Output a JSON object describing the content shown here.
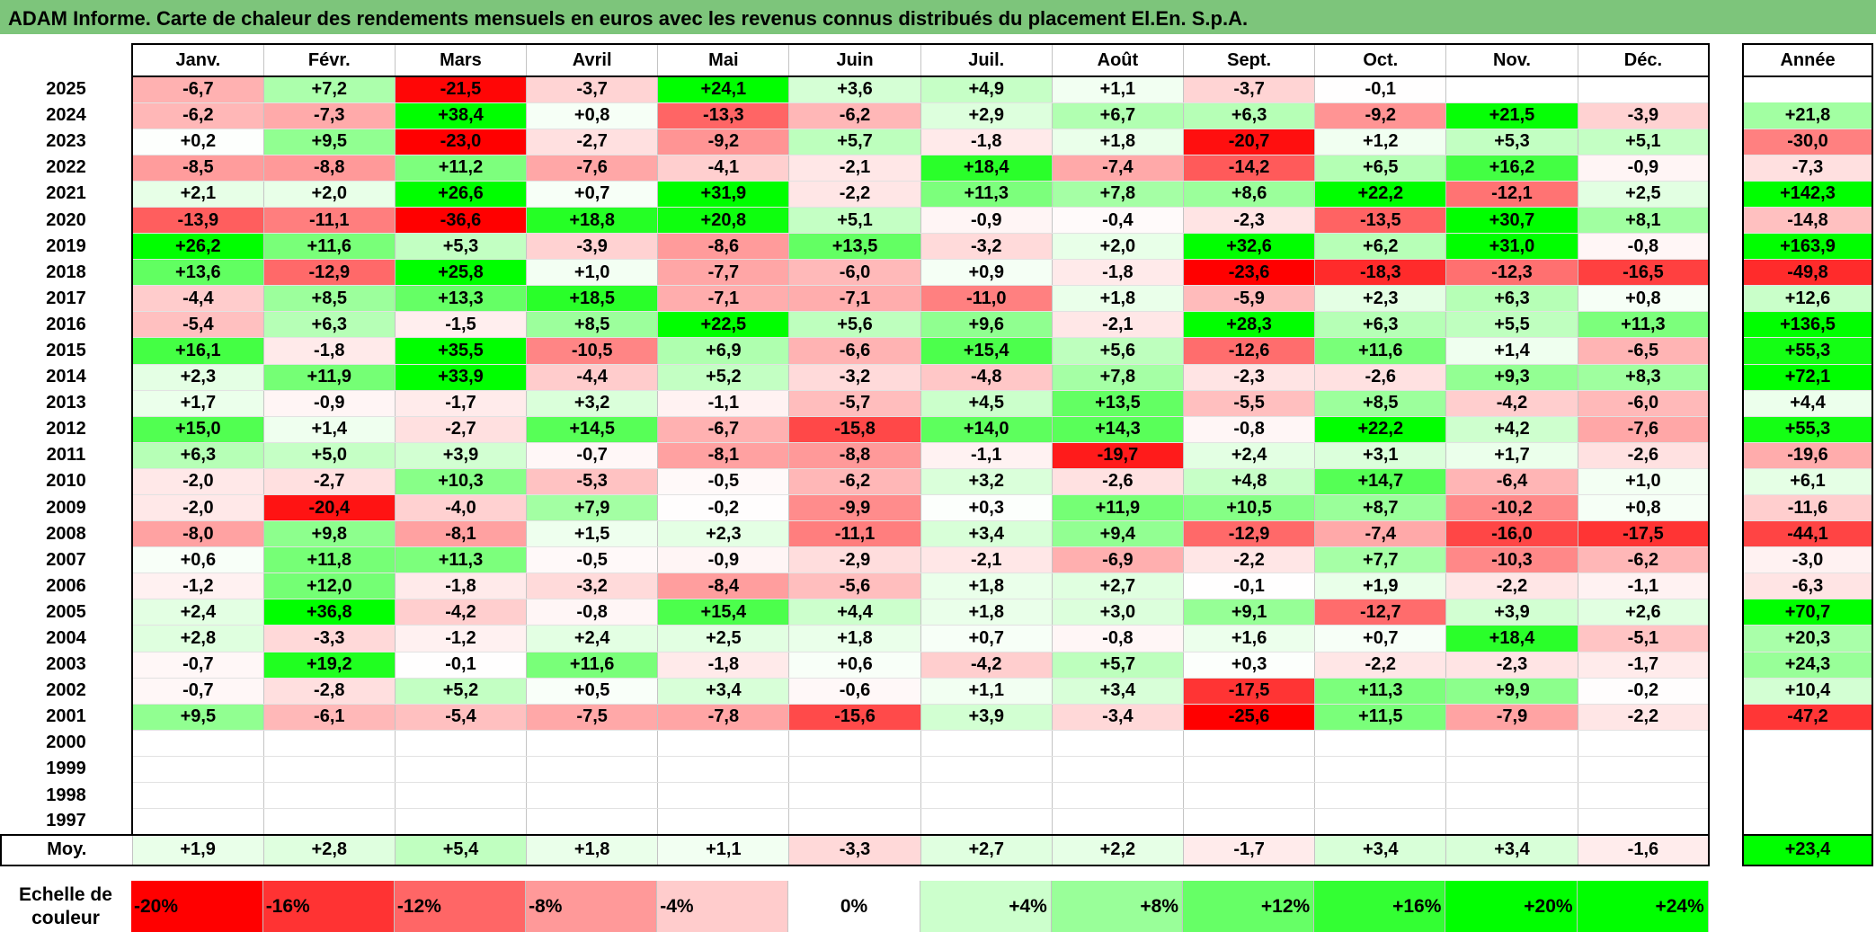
{
  "title": "ADAM Informe. Carte de chaleur des rendements mensuels en euros avec les revenus connus distribués du placement El.En. S.p.A.",
  "chart_data": {
    "type": "heatmap",
    "months": [
      "Janv.",
      "Févr.",
      "Mars",
      "Avril",
      "Mai",
      "Juin",
      "Juil.",
      "Août",
      "Sept.",
      "Oct.",
      "Nov.",
      "Déc."
    ],
    "annual_header": "Année",
    "rows": [
      {
        "year": "2025",
        "values": [
          "-6,7",
          "+7,2",
          "-21,5",
          "-3,7",
          "+24,1",
          "+3,6",
          "+4,9",
          "+1,1",
          "-3,7",
          "-0,1",
          "",
          ""
        ],
        "annual": ""
      },
      {
        "year": "2024",
        "values": [
          "-6,2",
          "-7,3",
          "+38,4",
          "+0,8",
          "-13,3",
          "-6,2",
          "+2,9",
          "+6,7",
          "+6,3",
          "-9,2",
          "+21,5",
          "-3,9"
        ],
        "annual": "+21,8"
      },
      {
        "year": "2023",
        "values": [
          "+0,2",
          "+9,5",
          "-23,0",
          "-2,7",
          "-9,2",
          "+5,7",
          "-1,8",
          "+1,8",
          "-20,7",
          "+1,2",
          "+5,3",
          "+5,1"
        ],
        "annual": "-30,0"
      },
      {
        "year": "2022",
        "values": [
          "-8,5",
          "-8,8",
          "+11,2",
          "-7,6",
          "-4,1",
          "-2,1",
          "+18,4",
          "-7,4",
          "-14,2",
          "+6,5",
          "+16,2",
          "-0,9"
        ],
        "annual": "-7,3"
      },
      {
        "year": "2021",
        "values": [
          "+2,1",
          "+2,0",
          "+26,6",
          "+0,7",
          "+31,9",
          "-2,2",
          "+11,3",
          "+7,8",
          "+8,6",
          "+22,2",
          "-12,1",
          "+2,5"
        ],
        "annual": "+142,3"
      },
      {
        "year": "2020",
        "values": [
          "-13,9",
          "-11,1",
          "-36,6",
          "+18,8",
          "+20,8",
          "+5,1",
          "-0,9",
          "-0,4",
          "-2,3",
          "-13,5",
          "+30,7",
          "+8,1"
        ],
        "annual": "-14,8"
      },
      {
        "year": "2019",
        "values": [
          "+26,2",
          "+11,6",
          "+5,3",
          "-3,9",
          "-8,6",
          "+13,5",
          "-3,2",
          "+2,0",
          "+32,6",
          "+6,2",
          "+31,0",
          "-0,8"
        ],
        "annual": "+163,9"
      },
      {
        "year": "2018",
        "values": [
          "+13,6",
          "-12,9",
          "+25,8",
          "+1,0",
          "-7,7",
          "-6,0",
          "+0,9",
          "-1,8",
          "-23,6",
          "-18,3",
          "-12,3",
          "-16,5"
        ],
        "annual": "-49,8"
      },
      {
        "year": "2017",
        "values": [
          "-4,4",
          "+8,5",
          "+13,3",
          "+18,5",
          "-7,1",
          "-7,1",
          "-11,0",
          "+1,8",
          "-5,9",
          "+2,3",
          "+6,3",
          "+0,8"
        ],
        "annual": "+12,6"
      },
      {
        "year": "2016",
        "values": [
          "-5,4",
          "+6,3",
          "-1,5",
          "+8,5",
          "+22,5",
          "+5,6",
          "+9,6",
          "-2,1",
          "+28,3",
          "+6,3",
          "+5,5",
          "+11,3"
        ],
        "annual": "+136,5"
      },
      {
        "year": "2015",
        "values": [
          "+16,1",
          "-1,8",
          "+35,5",
          "-10,5",
          "+6,9",
          "-6,6",
          "+15,4",
          "+5,6",
          "-12,6",
          "+11,6",
          "+1,4",
          "-6,5"
        ],
        "annual": "+55,3"
      },
      {
        "year": "2014",
        "values": [
          "+2,3",
          "+11,9",
          "+33,9",
          "-4,4",
          "+5,2",
          "-3,2",
          "-4,8",
          "+7,8",
          "-2,3",
          "-2,6",
          "+9,3",
          "+8,3"
        ],
        "annual": "+72,1"
      },
      {
        "year": "2013",
        "values": [
          "+1,7",
          "-0,9",
          "-1,7",
          "+3,2",
          "-1,1",
          "-5,7",
          "+4,5",
          "+13,5",
          "-5,5",
          "+8,5",
          "-4,2",
          "-6,0"
        ],
        "annual": "+4,4"
      },
      {
        "year": "2012",
        "values": [
          "+15,0",
          "+1,4",
          "-2,7",
          "+14,5",
          "-6,7",
          "-15,8",
          "+14,0",
          "+14,3",
          "-0,8",
          "+22,2",
          "+4,2",
          "-7,6"
        ],
        "annual": "+55,3"
      },
      {
        "year": "2011",
        "values": [
          "+6,3",
          "+5,0",
          "+3,9",
          "-0,7",
          "-8,1",
          "-8,8",
          "-1,1",
          "-19,7",
          "+2,4",
          "+3,1",
          "+1,7",
          "-2,6"
        ],
        "annual": "-19,6"
      },
      {
        "year": "2010",
        "values": [
          "-2,0",
          "-2,7",
          "+10,3",
          "-5,3",
          "-0,5",
          "-6,2",
          "+3,2",
          "-2,6",
          "+4,8",
          "+14,7",
          "-6,4",
          "+1,0"
        ],
        "annual": "+6,1"
      },
      {
        "year": "2009",
        "values": [
          "-2,0",
          "-20,4",
          "-4,0",
          "+7,9",
          "-0,2",
          "-9,9",
          "+0,3",
          "+11,9",
          "+10,5",
          "+8,7",
          "-10,2",
          "+0,8"
        ],
        "annual": "-11,6"
      },
      {
        "year": "2008",
        "values": [
          "-8,0",
          "+9,8",
          "-8,1",
          "+1,5",
          "+2,3",
          "-11,1",
          "+3,4",
          "+9,4",
          "-12,9",
          "-7,4",
          "-16,0",
          "-17,5"
        ],
        "annual": "-44,1"
      },
      {
        "year": "2007",
        "values": [
          "+0,6",
          "+11,8",
          "+11,3",
          "-0,5",
          "-0,9",
          "-2,9",
          "-2,1",
          "-6,9",
          "-2,2",
          "+7,7",
          "-10,3",
          "-6,2"
        ],
        "annual": "-3,0"
      },
      {
        "year": "2006",
        "values": [
          "-1,2",
          "+12,0",
          "-1,8",
          "-3,2",
          "-8,4",
          "-5,6",
          "+1,8",
          "+2,7",
          "-0,1",
          "+1,9",
          "-2,2",
          "-1,1"
        ],
        "annual": "-6,3"
      },
      {
        "year": "2005",
        "values": [
          "+2,4",
          "+36,8",
          "-4,2",
          "-0,8",
          "+15,4",
          "+4,4",
          "+1,8",
          "+3,0",
          "+9,1",
          "-12,7",
          "+3,9",
          "+2,6"
        ],
        "annual": "+70,7"
      },
      {
        "year": "2004",
        "values": [
          "+2,8",
          "-3,3",
          "-1,2",
          "+2,4",
          "+2,5",
          "+1,8",
          "+0,7",
          "-0,8",
          "+1,6",
          "+0,7",
          "+18,4",
          "-5,1"
        ],
        "annual": "+20,3"
      },
      {
        "year": "2003",
        "values": [
          "-0,7",
          "+19,2",
          "-0,1",
          "+11,6",
          "-1,8",
          "+0,6",
          "-4,2",
          "+5,7",
          "+0,3",
          "-2,2",
          "-2,3",
          "-1,7"
        ],
        "annual": "+24,3"
      },
      {
        "year": "2002",
        "values": [
          "-0,7",
          "-2,8",
          "+5,2",
          "+0,5",
          "+3,4",
          "-0,6",
          "+1,1",
          "+3,4",
          "-17,5",
          "+11,3",
          "+9,9",
          "-0,2"
        ],
        "annual": "+10,4"
      },
      {
        "year": "2001",
        "values": [
          "+9,5",
          "-6,1",
          "-5,4",
          "-7,5",
          "-7,8",
          "-15,6",
          "+3,9",
          "-3,4",
          "-25,6",
          "+11,5",
          "-7,9",
          "-2,2"
        ],
        "annual": "-47,2"
      },
      {
        "year": "2000",
        "values": [
          "",
          "",
          "",
          "",
          "",
          "",
          "",
          "",
          "",
          "",
          "",
          ""
        ],
        "annual": ""
      },
      {
        "year": "1999",
        "values": [
          "",
          "",
          "",
          "",
          "",
          "",
          "",
          "",
          "",
          "",
          "",
          ""
        ],
        "annual": ""
      },
      {
        "year": "1998",
        "values": [
          "",
          "",
          "",
          "",
          "",
          "",
          "",
          "",
          "",
          "",
          "",
          ""
        ],
        "annual": ""
      },
      {
        "year": "1997",
        "values": [
          "",
          "",
          "",
          "",
          "",
          "",
          "",
          "",
          "",
          "",
          "",
          ""
        ],
        "annual": ""
      }
    ],
    "average": {
      "label": "Moy.",
      "values": [
        "+1,9",
        "+2,8",
        "+5,4",
        "+1,8",
        "+1,1",
        "-3,3",
        "+2,7",
        "+2,2",
        "-1,7",
        "+3,4",
        "+3,4",
        "-1,6"
      ],
      "annual": "+23,4"
    },
    "scale": {
      "label_lines": [
        "Echelle de",
        "couleur"
      ],
      "steps": [
        {
          "label": "-20%",
          "value": -20
        },
        {
          "label": "-16%",
          "value": -16
        },
        {
          "label": "-12%",
          "value": -12
        },
        {
          "label": "-8%",
          "value": -8
        },
        {
          "label": "-4%",
          "value": -4
        },
        {
          "label": "0%",
          "value": 0
        },
        {
          "label": "+4%",
          "value": 4
        },
        {
          "label": "+8%",
          "value": 8
        },
        {
          "label": "+12%",
          "value": 12
        },
        {
          "label": "+16%",
          "value": 16
        },
        {
          "label": "+20%",
          "value": 20
        },
        {
          "label": "+24%",
          "value": 24
        }
      ]
    },
    "colors": {
      "negative_max": "#ff0000",
      "neutral": "#ffffff",
      "positive_max": "#00ff00",
      "title_bg": "#7dc57b"
    }
  }
}
